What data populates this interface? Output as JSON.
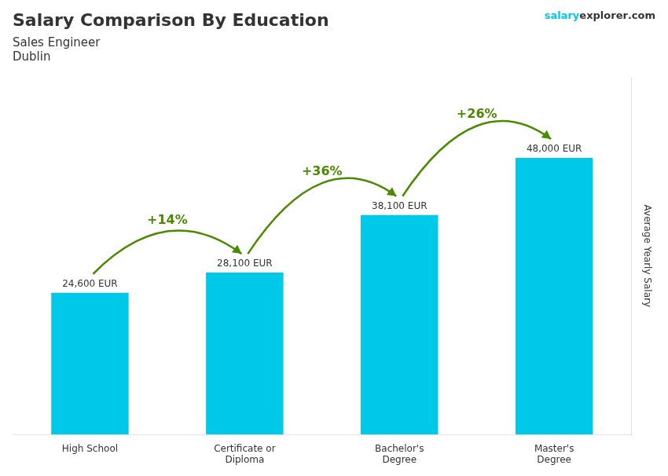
{
  "chart_data": {
    "type": "bar",
    "title": "Salary Comparison By Education",
    "subtitle": [
      "Sales Engineer",
      "Dublin"
    ],
    "watermark": [
      "salary",
      "explorer",
      ".com"
    ],
    "ylabel": "Average Yearly Salary",
    "categories": [
      "High School",
      "Certificate or\nDiploma",
      "Bachelor's\nDegree",
      "Master's\nDegree"
    ],
    "values": [
      24600,
      28100,
      38100,
      48000
    ],
    "value_labels": [
      "24,600 EUR",
      "28,100 EUR",
      "38,100 EUR",
      "48,000 EUR"
    ],
    "data_labels": true,
    "annotations": [
      "+14%",
      "+36%",
      "+26%"
    ],
    "color": "#00c8e8",
    "ylim": [
      0,
      62000
    ],
    "tick_labels": "x",
    "grid": false
  }
}
